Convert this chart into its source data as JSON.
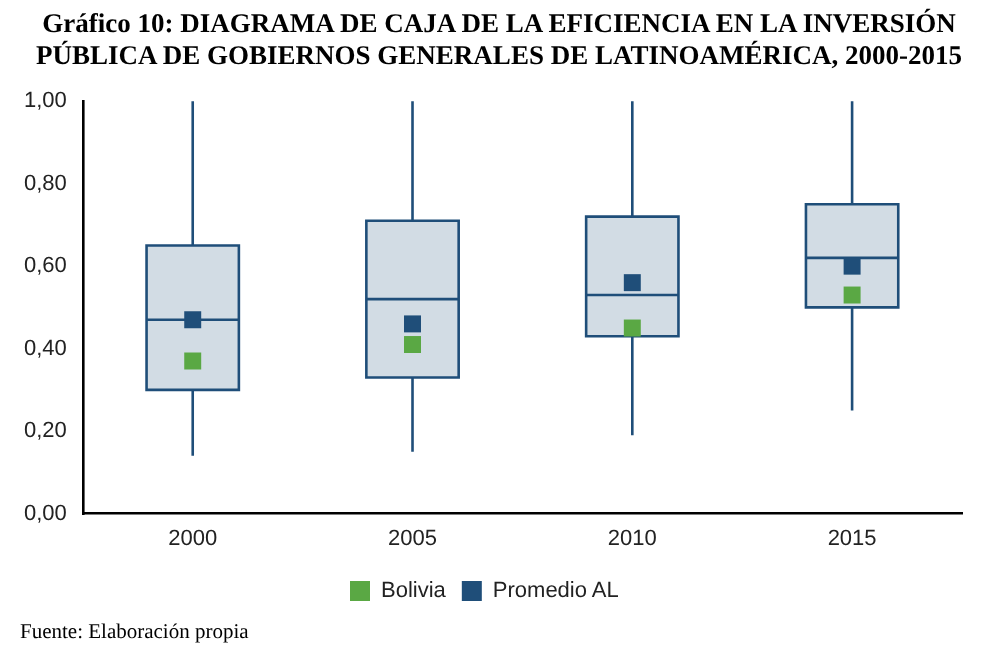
{
  "chart_data": {
    "type": "box",
    "title": "Gráfico 10: DIAGRAMA DE CAJA DE LA EFICIENCIA EN LA INVERSIÓN PÚBLICA DE GOBIERNOS GENERALES DE LATINOAMÉRICA, 2000-2015",
    "categories": [
      "2000",
      "2005",
      "2010",
      "2015"
    ],
    "ylim": [
      0,
      1
    ],
    "yticks": [
      {
        "value": 0,
        "label": "0,00"
      },
      {
        "value": 0.2,
        "label": "0,20"
      },
      {
        "value": 0.4,
        "label": "0,40"
      },
      {
        "value": 0.6,
        "label": "0,60"
      },
      {
        "value": 0.8,
        "label": "0,80"
      },
      {
        "value": 1,
        "label": "1,00"
      }
    ],
    "series": [
      {
        "color": "#1f4e79",
        "boxes": [
          {
            "low": 0.14,
            "q1": 0.3,
            "median": 0.47,
            "q3": 0.65,
            "high": 1.0
          },
          {
            "low": 0.15,
            "q1": 0.33,
            "median": 0.52,
            "q3": 0.71,
            "high": 1.0
          },
          {
            "low": 0.19,
            "q1": 0.43,
            "median": 0.53,
            "q3": 0.72,
            "high": 1.0
          },
          {
            "low": 0.25,
            "q1": 0.5,
            "median": 0.62,
            "q3": 0.75,
            "high": 1.0
          }
        ]
      },
      {
        "type": "scatter",
        "name": "Bolivia",
        "color": "#5aa844",
        "values": [
          0.37,
          0.41,
          0.45,
          0.53
        ]
      },
      {
        "type": "scatter",
        "name": "Promedio AL",
        "color": "#1f4e79",
        "values": [
          0.47,
          0.46,
          0.56,
          0.6
        ]
      }
    ],
    "marker": "square",
    "legend": "bottom",
    "grid": false,
    "annotations": [
      "Fuente:   Elaboración propia"
    ]
  }
}
